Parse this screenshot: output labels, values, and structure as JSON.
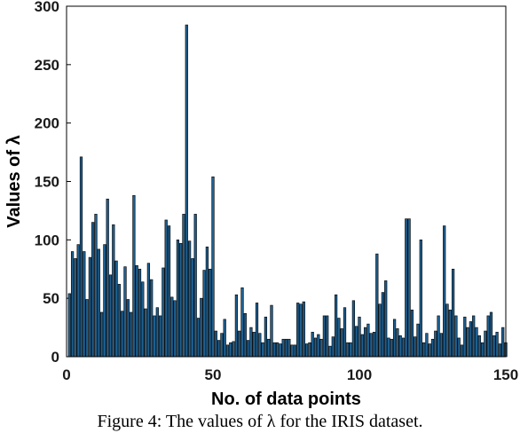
{
  "caption": "Figure 4: The values of λ for the IRIS dataset.",
  "chart_data": {
    "type": "bar",
    "xlabel": "No. of data points",
    "ylabel": "Values of λ",
    "xlim": [
      0,
      150
    ],
    "ylim": [
      0,
      300
    ],
    "xticks": [
      0,
      50,
      100,
      150
    ],
    "yticks": [
      0,
      50,
      100,
      150,
      200,
      250,
      300
    ],
    "grid": false,
    "bar_color": "#1f5f8f",
    "edge_color": "#000000",
    "x": [
      1,
      2,
      3,
      4,
      5,
      6,
      7,
      8,
      9,
      10,
      11,
      12,
      13,
      14,
      15,
      16,
      17,
      18,
      19,
      20,
      21,
      22,
      23,
      24,
      25,
      26,
      27,
      28,
      29,
      30,
      31,
      32,
      33,
      34,
      35,
      36,
      37,
      38,
      39,
      40,
      41,
      42,
      43,
      44,
      45,
      46,
      47,
      48,
      49,
      50,
      51,
      52,
      53,
      54,
      55,
      56,
      57,
      58,
      59,
      60,
      61,
      62,
      63,
      64,
      65,
      66,
      67,
      68,
      69,
      70,
      71,
      72,
      73,
      74,
      75,
      76,
      77,
      78,
      79,
      80,
      81,
      82,
      83,
      84,
      85,
      86,
      87,
      88,
      89,
      90,
      91,
      92,
      93,
      94,
      95,
      96,
      97,
      98,
      99,
      100,
      101,
      102,
      103,
      104,
      105,
      106,
      107,
      108,
      109,
      110,
      111,
      112,
      113,
      114,
      115,
      116,
      117,
      118,
      119,
      120,
      121,
      122,
      123,
      124,
      125,
      126,
      127,
      128,
      129,
      130,
      131,
      132,
      133,
      134,
      135,
      136,
      137,
      138,
      139,
      140,
      141,
      142,
      143,
      144,
      145,
      146,
      147,
      148,
      149,
      150
    ],
    "values": [
      54,
      90,
      84,
      96,
      171,
      90,
      49,
      85,
      115,
      122,
      92,
      38,
      96,
      135,
      70,
      113,
      82,
      62,
      39,
      77,
      49,
      38,
      138,
      78,
      75,
      64,
      41,
      80,
      66,
      35,
      42,
      35,
      76,
      117,
      112,
      51,
      48,
      100,
      97,
      122,
      284,
      99,
      84,
      122,
      33,
      50,
      74,
      94,
      75,
      154,
      22,
      14,
      20,
      32,
      10,
      12,
      13,
      53,
      22,
      59,
      37,
      14,
      25,
      21,
      46,
      20,
      12,
      34,
      15,
      44,
      12,
      12,
      11,
      15,
      15,
      15,
      10,
      10,
      46,
      45,
      47,
      11,
      12,
      21,
      16,
      19,
      15,
      35,
      35,
      9,
      17,
      53,
      33,
      24,
      42,
      12,
      12,
      48,
      26,
      34,
      19,
      25,
      28,
      20,
      21,
      88,
      45,
      55,
      65,
      16,
      15,
      32,
      24,
      18,
      16,
      118,
      118,
      40,
      17,
      28,
      100,
      12,
      20,
      11,
      15,
      22,
      35,
      20,
      112,
      45,
      40,
      75,
      35,
      16,
      10,
      34,
      25,
      30,
      35,
      25,
      18,
      12,
      22,
      35,
      38,
      18,
      21,
      11,
      25,
      12
    ]
  }
}
